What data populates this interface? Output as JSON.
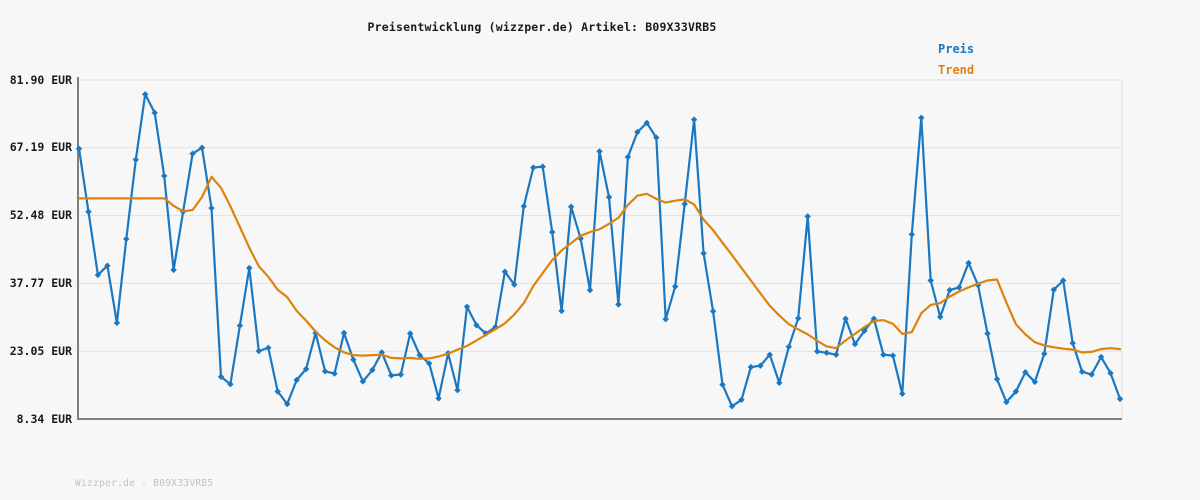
{
  "title": "Preisentwicklung (wizzper.de) Artikel: B09X33VRB5",
  "legend": {
    "price_label": "Preis",
    "trend_label": "Trend"
  },
  "footer": "Wizzper.de - B09X33VRB5",
  "colors": {
    "background": "#f7f7f7",
    "grid": "#e2e2e2",
    "axis": "#7f7f7f",
    "text": "#1a1a1a",
    "footer_text": "#c2c2c2"
  },
  "chart_data": {
    "type": "line",
    "title": "Preisentwicklung (wizzper.de) Artikel: B09X33VRB5",
    "xlabel": "",
    "ylabel": "EUR",
    "ylim": [
      8.34,
      81.9
    ],
    "grid": "horizontal",
    "legend_position": "top-right",
    "yticks": [
      {
        "value": 81.9,
        "label": "81.90 EUR"
      },
      {
        "value": 67.19,
        "label": "67.19 EUR"
      },
      {
        "value": 52.48,
        "label": "52.48 EUR"
      },
      {
        "value": 37.77,
        "label": "37.77 EUR"
      },
      {
        "value": 23.05,
        "label": "23.05 EUR"
      },
      {
        "value": 8.34,
        "label": "8.34 EUR"
      }
    ],
    "series": [
      {
        "name": "Preis",
        "color": "#1a78c2",
        "marker": "diamond",
        "values": [
          67.0,
          53.3,
          39.6,
          41.6,
          29.2,
          47.4,
          64.6,
          78.8,
          74.8,
          61.1,
          40.7,
          53.3,
          65.9,
          67.2,
          54.1,
          17.5,
          15.9,
          28.6,
          41.1,
          23.1,
          23.8,
          14.3,
          11.6,
          16.8,
          19.2,
          27.0,
          18.7,
          18.2,
          27.0,
          21.2,
          16.5,
          19.0,
          22.8,
          17.8,
          18.0,
          26.9,
          22.2,
          20.4,
          12.8,
          22.6,
          14.6,
          32.7,
          28.7,
          26.9,
          28.3,
          40.3,
          37.5,
          54.5,
          62.9,
          63.1,
          48.9,
          31.8,
          54.4,
          47.5,
          36.3,
          66.4,
          56.5,
          33.2,
          65.2,
          70.6,
          72.6,
          69.4,
          30.0,
          37.1,
          55.0,
          73.3,
          44.3,
          31.7,
          15.8,
          11.1,
          12.5,
          19.6,
          19.9,
          22.3,
          16.2,
          24.0,
          30.2,
          52.3,
          23.0,
          22.7,
          22.3,
          30.1,
          24.6,
          27.5,
          30.1,
          22.3,
          22.1,
          13.8,
          48.4,
          73.7,
          38.4,
          30.5,
          36.3,
          36.9,
          42.2,
          37.4,
          26.9,
          17.0,
          12.0,
          14.3,
          18.5,
          16.4,
          22.5,
          36.4,
          38.4,
          24.8,
          18.6,
          18.0,
          21.8,
          18.3,
          12.7
        ]
      },
      {
        "name": "Trend",
        "color": "#dd830d",
        "marker": "none",
        "values": [
          56.2,
          56.2,
          56.2,
          56.2,
          56.2,
          56.2,
          56.2,
          56.2,
          56.2,
          56.2,
          54.6,
          53.4,
          53.7,
          56.5,
          60.9,
          58.5,
          54.5,
          50.0,
          45.5,
          41.5,
          39.2,
          36.4,
          34.8,
          31.8,
          29.7,
          27.3,
          25.4,
          23.9,
          22.8,
          22.2,
          22.1,
          22.2,
          22.3,
          21.6,
          21.5,
          21.6,
          21.4,
          21.5,
          21.9,
          22.5,
          23.4,
          24.2,
          25.4,
          26.6,
          27.8,
          29.1,
          31.0,
          33.5,
          37.2,
          40.0,
          42.8,
          44.9,
          46.5,
          48.1,
          48.9,
          49.5,
          50.7,
          52.0,
          54.8,
          56.8,
          57.2,
          56.1,
          55.3,
          55.7,
          56.0,
          54.9,
          51.6,
          49.3,
          46.6,
          43.9,
          41.1,
          38.4,
          35.6,
          32.9,
          30.8,
          28.9,
          27.8,
          26.7,
          25.3,
          24.1,
          23.7,
          25.4,
          26.8,
          28.3,
          29.6,
          29.8,
          29.0,
          26.8,
          27.2,
          31.3,
          33.1,
          33.5,
          34.9,
          36.0,
          36.9,
          37.7,
          38.4,
          38.6,
          33.6,
          28.9,
          26.7,
          25.0,
          24.3,
          23.9,
          23.6,
          23.4,
          22.8,
          22.9,
          23.5,
          23.7,
          23.5
        ]
      }
    ]
  }
}
